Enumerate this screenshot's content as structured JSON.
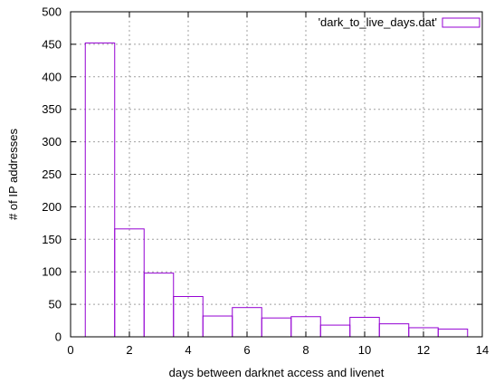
{
  "chart_data": {
    "type": "bar",
    "style": "histogram-outline",
    "x": [
      1,
      2,
      3,
      4,
      5,
      6,
      7,
      8,
      9,
      10,
      11,
      12,
      13
    ],
    "values": [
      452,
      166,
      98,
      62,
      32,
      45,
      29,
      31,
      18,
      30,
      20,
      14,
      12
    ],
    "bin_width": 1,
    "title": "",
    "xlabel": "days between darknet access and livenet",
    "ylabel": "# of IP addresses",
    "xlim": [
      0,
      14
    ],
    "ylim": [
      0,
      500
    ],
    "xticks": [
      0,
      2,
      4,
      6,
      8,
      10,
      12,
      14
    ],
    "yticks": [
      0,
      50,
      100,
      150,
      200,
      250,
      300,
      350,
      400,
      450,
      500
    ],
    "grid": true,
    "legend_position": "top-right",
    "series": [
      {
        "name": "'dark_to_live_days.dat'",
        "color": "#9400d3"
      }
    ]
  }
}
